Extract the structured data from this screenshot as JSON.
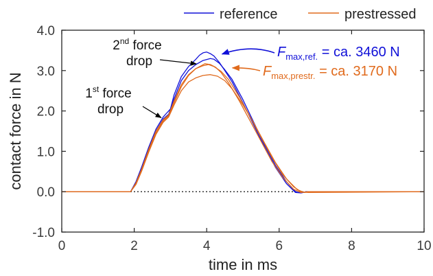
{
  "chart_data": {
    "type": "line",
    "title": "",
    "xlabel": "time in ms",
    "ylabel": "contact force in N",
    "xlim": [
      0,
      10
    ],
    "ylim": [
      -1.0,
      4.0
    ],
    "x_ticks": [
      0,
      2,
      4,
      6,
      8,
      10
    ],
    "y_ticks": [
      -1.0,
      0.0,
      1.0,
      2.0,
      3.0,
      4.0
    ],
    "x_tick_labels": [
      "0",
      "2",
      "4",
      "6",
      "8",
      "10"
    ],
    "y_tick_labels": [
      "-1.0",
      "0.0",
      "1.0",
      "2.0",
      "3.0",
      "4.0"
    ],
    "grid": false,
    "zero_line": "dotted",
    "legend_position": "top",
    "colors": {
      "reference": "#1010d8",
      "prestressed": "#e06a1c"
    },
    "series": [
      {
        "name": "reference",
        "color": "#1010d8",
        "runs": [
          {
            "x": [
              0,
              1.9,
              2.05,
              2.2,
              2.4,
              2.6,
              2.8,
              2.9,
              3.0,
              3.1,
              3.3,
              3.5,
              3.7,
              3.8,
              3.9,
              4.0,
              4.1,
              4.2,
              4.35,
              4.5,
              4.7,
              5.0,
              5.3,
              5.6,
              5.9,
              6.2,
              6.45,
              6.6,
              6.75,
              10
            ],
            "y": [
              0,
              0,
              0.25,
              0.6,
              1.1,
              1.55,
              1.85,
              1.95,
              2.05,
              2.4,
              2.85,
              3.1,
              3.28,
              3.38,
              3.44,
              3.46,
              3.42,
              3.36,
              3.2,
              3.0,
              2.72,
              2.2,
              1.65,
              1.1,
              0.6,
              0.2,
              -0.02,
              -0.03,
              0,
              0
            ]
          },
          {
            "x": [
              0,
              1.9,
              2.05,
              2.2,
              2.4,
              2.6,
              2.8,
              2.95,
              3.1,
              3.3,
              3.5,
              3.7,
              3.9,
              4.1,
              4.2,
              4.35,
              4.5,
              4.7,
              5.0,
              5.3,
              5.6,
              5.9,
              6.2,
              6.45,
              6.6,
              6.75,
              10
            ],
            "y": [
              0,
              0,
              0.22,
              0.55,
              1.05,
              1.5,
              1.8,
              1.92,
              2.3,
              2.75,
              3.0,
              3.15,
              3.25,
              3.3,
              3.28,
              3.18,
              3.02,
              2.78,
              2.28,
              1.72,
              1.15,
              0.65,
              0.25,
              0,
              -0.03,
              0,
              0
            ]
          }
        ]
      },
      {
        "name": "prestressed",
        "color": "#e06a1c",
        "runs": [
          {
            "x": [
              0,
              1.9,
              2.05,
              2.2,
              2.4,
              2.6,
              2.8,
              2.95,
              3.1,
              3.3,
              3.5,
              3.7,
              3.85,
              3.95,
              4.1,
              4.25,
              4.4,
              4.6,
              4.9,
              5.2,
              5.5,
              5.8,
              6.1,
              6.4,
              6.6,
              6.8,
              10
            ],
            "y": [
              0,
              0,
              0.22,
              0.55,
              1.05,
              1.5,
              1.78,
              1.9,
              2.25,
              2.65,
              2.9,
              3.05,
              3.12,
              3.17,
              3.15,
              3.08,
              2.95,
              2.7,
              2.25,
              1.75,
              1.25,
              0.75,
              0.35,
              0.06,
              -0.02,
              0,
              0
            ]
          },
          {
            "x": [
              0,
              1.9,
              2.05,
              2.2,
              2.4,
              2.6,
              2.8,
              2.95,
              3.1,
              3.3,
              3.5,
              3.7,
              3.9,
              4.05,
              4.2,
              4.4,
              4.6,
              4.9,
              5.2,
              5.5,
              5.8,
              6.1,
              6.4,
              6.6,
              6.8,
              10
            ],
            "y": [
              0,
              0,
              0.2,
              0.52,
              1.0,
              1.45,
              1.75,
              1.88,
              2.2,
              2.6,
              2.88,
              3.05,
              3.12,
              3.15,
              3.1,
              2.98,
              2.78,
              2.35,
              1.85,
              1.35,
              0.85,
              0.42,
              0.12,
              0,
              -0.02,
              0
            ]
          },
          {
            "x": [
              0,
              1.9,
              2.05,
              2.2,
              2.4,
              2.6,
              2.8,
              2.95,
              3.1,
              3.3,
              3.5,
              3.7,
              3.9,
              4.1,
              4.3,
              4.5,
              4.7,
              5.0,
              5.3,
              5.6,
              5.9,
              6.2,
              6.5,
              6.7,
              6.9,
              10
            ],
            "y": [
              0,
              0,
              0.18,
              0.5,
              0.98,
              1.42,
              1.72,
              1.85,
              2.15,
              2.5,
              2.72,
              2.82,
              2.88,
              2.9,
              2.86,
              2.75,
              2.55,
              2.15,
              1.7,
              1.2,
              0.72,
              0.32,
              0.05,
              -0.02,
              0,
              0
            ]
          }
        ]
      }
    ],
    "annotations": {
      "drop2": {
        "sup_num": "2",
        "sup": "nd",
        "word": " force",
        "line2": "drop",
        "arrow_to": [
          3.75,
          3.2
        ]
      },
      "drop1": {
        "sup_num": "1",
        "sup": "st",
        "word": " force",
        "line2": "drop",
        "arrow_to": [
          2.8,
          1.85
        ]
      },
      "fmax_ref": {
        "F": "F",
        "sub": "max,ref.",
        "rest": " = ca. 3460 N",
        "color": "#1010d8",
        "arrow_to": [
          4.35,
          3.46
        ]
      },
      "fmax_pre": {
        "F": "F",
        "sub": "max,prestr.",
        "rest": " = ca. 3170 N",
        "color": "#e06a1c",
        "arrow_to": [
          4.75,
          3.05
        ]
      }
    }
  }
}
